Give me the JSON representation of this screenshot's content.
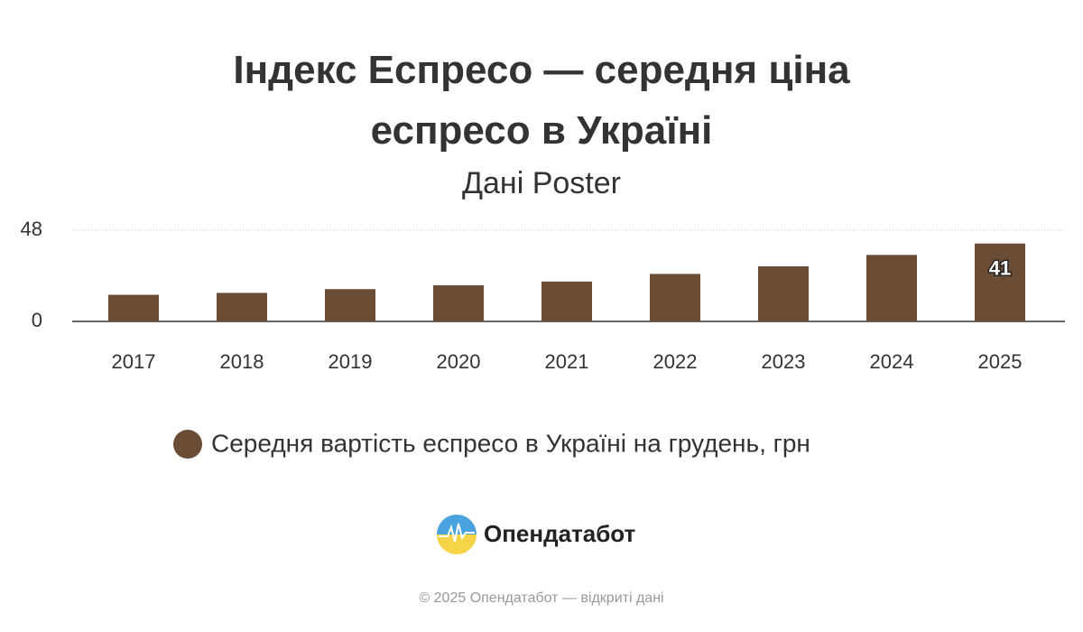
{
  "chart_data": {
    "type": "bar",
    "title": "Індекс Еспресо — середня ціна еспресо в Україні",
    "subtitle": "Дані Poster",
    "categories": [
      "2017",
      "2018",
      "2019",
      "2020",
      "2021",
      "2022",
      "2023",
      "2024",
      "2025"
    ],
    "series": [
      {
        "name": "Середня вартість еспресо в Україні на грудень, грн",
        "color": "#6b4d36",
        "values": [
          14,
          15,
          17,
          19,
          21,
          25,
          29,
          35,
          41
        ],
        "value_labels": [
          null,
          null,
          null,
          null,
          null,
          null,
          null,
          null,
          "41"
        ]
      }
    ],
    "ylim": [
      0,
      48
    ],
    "yticks": [
      0,
      48
    ],
    "grid": true
  },
  "brand": "Опендатабот",
  "footer": "© 2025 Опендатабот — відкриті дані"
}
